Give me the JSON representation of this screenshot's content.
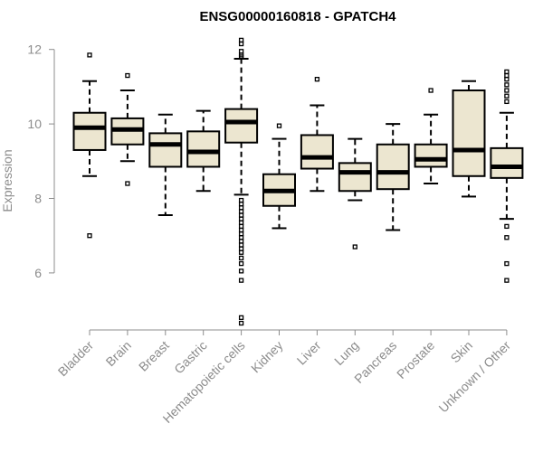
{
  "chart_data": {
    "type": "boxplot",
    "title": "ENSG00000160818 - GPATCH4",
    "ylabel": "Expression",
    "xlabel": "",
    "ylim": [
      4.5,
      12.4
    ],
    "yticks": [
      6,
      8,
      10,
      12
    ],
    "categories": [
      "Bladder",
      "Brain",
      "Breast",
      "Gastric",
      "Hematopoietic cells",
      "Kidney",
      "Liver",
      "Lung",
      "Pancreas",
      "Prostate",
      "Skin",
      "Unknown / Other"
    ],
    "series": [
      {
        "name": "Bladder",
        "whisker_low": 8.6,
        "q1": 9.3,
        "median": 9.9,
        "q3": 10.3,
        "whisker_high": 11.15,
        "outliers": [
          11.85,
          7.0
        ]
      },
      {
        "name": "Brain",
        "whisker_low": 9.0,
        "q1": 9.45,
        "median": 9.85,
        "q3": 10.15,
        "whisker_high": 10.9,
        "outliers": [
          11.3,
          8.4
        ]
      },
      {
        "name": "Breast",
        "whisker_low": 7.55,
        "q1": 8.85,
        "median": 9.45,
        "q3": 9.75,
        "whisker_high": 10.25,
        "outliers": []
      },
      {
        "name": "Gastric",
        "whisker_low": 8.2,
        "q1": 8.85,
        "median": 9.25,
        "q3": 9.8,
        "whisker_high": 10.35,
        "outliers": []
      },
      {
        "name": "Hematopoietic cells",
        "whisker_low": 8.1,
        "q1": 9.5,
        "median": 10.05,
        "q3": 10.4,
        "whisker_high": 11.75,
        "outliers": [
          12.25,
          12.15,
          11.95,
          11.85,
          11.8,
          7.95,
          7.85,
          7.75,
          7.65,
          7.55,
          7.45,
          7.35,
          7.25,
          7.15,
          7.05,
          6.95,
          6.85,
          6.75,
          6.65,
          6.55,
          6.4,
          6.25,
          6.05,
          5.8,
          4.8,
          4.65
        ]
      },
      {
        "name": "Kidney",
        "whisker_low": 7.2,
        "q1": 7.8,
        "median": 8.2,
        "q3": 8.65,
        "whisker_high": 9.6,
        "outliers": [
          9.95
        ]
      },
      {
        "name": "Liver",
        "whisker_low": 8.2,
        "q1": 8.8,
        "median": 9.1,
        "q3": 9.7,
        "whisker_high": 10.5,
        "outliers": [
          11.2
        ]
      },
      {
        "name": "Lung",
        "whisker_low": 7.95,
        "q1": 8.2,
        "median": 8.7,
        "q3": 8.95,
        "whisker_high": 9.6,
        "outliers": [
          6.7
        ]
      },
      {
        "name": "Pancreas",
        "whisker_low": 7.15,
        "q1": 8.25,
        "median": 8.7,
        "q3": 9.45,
        "whisker_high": 10.0,
        "outliers": []
      },
      {
        "name": "Prostate",
        "whisker_low": 8.4,
        "q1": 8.85,
        "median": 9.05,
        "q3": 9.45,
        "whisker_high": 10.25,
        "outliers": [
          10.9
        ]
      },
      {
        "name": "Skin",
        "whisker_low": 8.05,
        "q1": 8.6,
        "median": 9.3,
        "q3": 10.9,
        "whisker_high": 11.15,
        "outliers": []
      },
      {
        "name": "Unknown / Other",
        "whisker_low": 7.45,
        "q1": 8.55,
        "median": 8.85,
        "q3": 9.35,
        "whisker_high": 10.3,
        "outliers": [
          11.4,
          11.3,
          11.2,
          11.05,
          10.9,
          10.75,
          10.6,
          7.25,
          6.95,
          6.25,
          5.8
        ]
      }
    ]
  },
  "colors": {
    "box_fill": "#ece6d0",
    "axis": "#8c8c8c"
  }
}
